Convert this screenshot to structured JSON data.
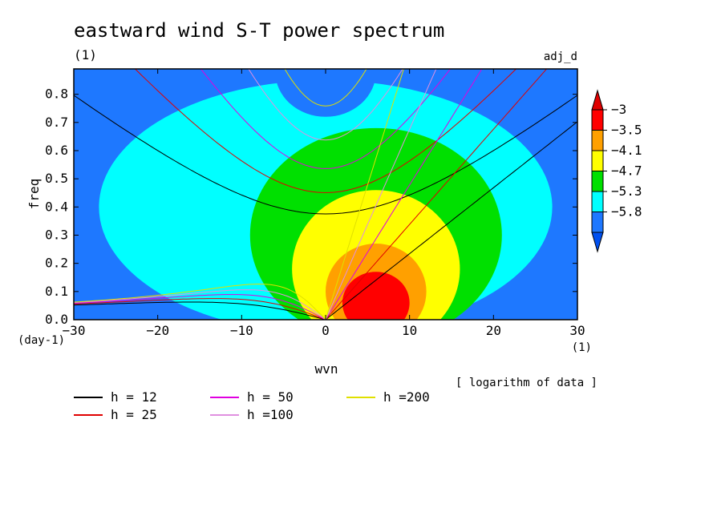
{
  "header": {
    "title": "eastward wind S-T power spectrum",
    "title_units": "(1)",
    "run_label": "adj_d"
  },
  "chart_data": {
    "type": "heatmap",
    "title": "eastward wind S-T power spectrum",
    "xlabel": "wvn",
    "ylabel": "freq",
    "x_units": "(1)",
    "y_units": "(day-1)",
    "xlim": [
      -30,
      30
    ],
    "ylim": [
      0,
      0.89
    ],
    "x_ticks": [
      -30,
      -20,
      -10,
      0,
      10,
      20,
      30
    ],
    "y_ticks": [
      0.0,
      0.1,
      0.2,
      0.3,
      0.4,
      0.5,
      0.6,
      0.7,
      0.8
    ],
    "x_tick_labels": [
      "−30",
      "−20",
      "−10",
      "0",
      "10",
      "20",
      "30"
    ],
    "y_tick_labels": [
      "0.0",
      "0.1",
      "0.2",
      "0.3",
      "0.4",
      "0.5",
      "0.6",
      "0.7",
      "0.8"
    ],
    "data_note": "[ logarithm of data ]",
    "colorbar": {
      "levels": [
        -5.8,
        -5.3,
        -4.7,
        -4.1,
        -3.5,
        -3
      ],
      "labels": [
        "−5.8",
        "−5.3",
        "−4.7",
        "−4.1",
        "−3.5",
        "−3"
      ],
      "colors": [
        "#1e78ff",
        "#00ffff",
        "#00e000",
        "#ffff00",
        "#ffa000",
        "#ff0000"
      ],
      "below_color": "#0050f0",
      "above_color": "#e00000"
    },
    "filled_regions": [
      {
        "level": "-5.3",
        "color": "#00ffff",
        "cx": 0,
        "cy": 0.4,
        "rx": 27,
        "ry": 0.45
      },
      {
        "level": "-4.7",
        "color": "#00e000",
        "cx": 6,
        "cy": 0.3,
        "rx": 15,
        "ry": 0.38
      },
      {
        "level": "-4.1",
        "color": "#ffff00",
        "cx": 6,
        "cy": 0.18,
        "rx": 10,
        "ry": 0.28
      },
      {
        "level": "-3.5",
        "color": "#ffa000",
        "cx": 6,
        "cy": 0.1,
        "rx": 6,
        "ry": 0.17
      },
      {
        "level": "-3",
        "color": "#ff0000",
        "cx": 6,
        "cy": 0.06,
        "rx": 4,
        "ry": 0.11
      },
      {
        "level": "-5.8",
        "color": "#1e78ff",
        "cx": 0,
        "cy": 0.88,
        "rx": 6,
        "ry": 0.16
      }
    ],
    "dispersion_curves": [
      {
        "name": "h = 12",
        "h": 12,
        "color": "#000000"
      },
      {
        "name": "h = 25",
        "h": 25,
        "color": "#e00000"
      },
      {
        "name": "h = 50",
        "h": 50,
        "color": "#e000e0"
      },
      {
        "name": "h =100",
        "h": 100,
        "color": "#e090e0"
      },
      {
        "name": "h =200",
        "h": 200,
        "color": "#e0e000"
      }
    ]
  }
}
